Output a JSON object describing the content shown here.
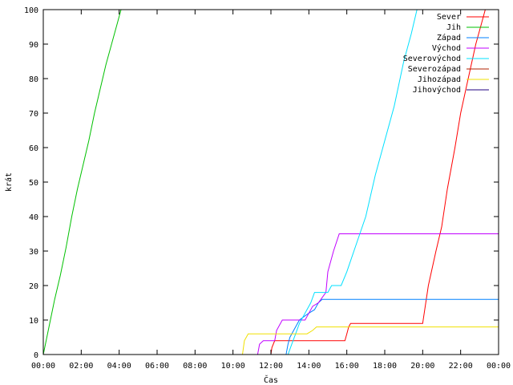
{
  "chart_data": {
    "type": "line",
    "xlabel": "Čas",
    "ylabel": "krát",
    "xlim": [
      0,
      24
    ],
    "ylim": [
      0,
      100
    ],
    "x_unit": "hours",
    "x_tick_labels": [
      "00:00",
      "02:00",
      "04:00",
      "06:00",
      "08:00",
      "10:00",
      "12:00",
      "14:00",
      "16:00",
      "18:00",
      "20:00",
      "22:00",
      "00:00"
    ],
    "y_tick_labels": [
      "0",
      "10",
      "20",
      "30",
      "40",
      "50",
      "60",
      "70",
      "80",
      "90",
      "100"
    ],
    "grid": false,
    "legend_position": "top-right",
    "series": [
      {
        "name": "Sever",
        "color": "#ff0000",
        "points": [
          [
            12.0,
            0
          ],
          [
            12.05,
            2
          ],
          [
            12.2,
            4
          ],
          [
            15.9,
            4
          ],
          [
            16.0,
            6
          ],
          [
            16.1,
            8
          ],
          [
            16.2,
            9
          ],
          [
            20.0,
            9
          ],
          [
            20.3,
            20
          ],
          [
            20.7,
            30
          ],
          [
            21.0,
            37
          ],
          [
            21.3,
            48
          ],
          [
            21.7,
            60
          ],
          [
            22.0,
            70
          ],
          [
            22.4,
            80
          ],
          [
            22.8,
            90
          ],
          [
            23.1,
            96
          ],
          [
            23.3,
            100
          ]
        ]
      },
      {
        "name": "Jih",
        "color": "#00c000",
        "points": [
          [
            0.0,
            0
          ],
          [
            0.3,
            8
          ],
          [
            0.6,
            16
          ],
          [
            0.9,
            23
          ],
          [
            1.2,
            31
          ],
          [
            1.5,
            40
          ],
          [
            1.8,
            48
          ],
          [
            2.1,
            55
          ],
          [
            2.4,
            62
          ],
          [
            2.7,
            70
          ],
          [
            3.0,
            77
          ],
          [
            3.3,
            84
          ],
          [
            3.6,
            90
          ],
          [
            3.9,
            96
          ],
          [
            4.1,
            100
          ]
        ]
      },
      {
        "name": "Západ",
        "color": "#0080ff",
        "points": [
          [
            12.8,
            0
          ],
          [
            12.9,
            3
          ],
          [
            13.0,
            5
          ],
          [
            13.5,
            10
          ],
          [
            14.0,
            12
          ],
          [
            14.3,
            13
          ],
          [
            14.5,
            15
          ],
          [
            14.7,
            16
          ],
          [
            24.0,
            16
          ]
        ]
      },
      {
        "name": "Východ",
        "color": "#c000ff",
        "points": [
          [
            11.3,
            0
          ],
          [
            11.4,
            3
          ],
          [
            11.6,
            4
          ],
          [
            12.2,
            4
          ],
          [
            12.3,
            7
          ],
          [
            12.6,
            10
          ],
          [
            13.8,
            10
          ],
          [
            14.2,
            14
          ],
          [
            14.5,
            15
          ],
          [
            14.9,
            18
          ],
          [
            15.0,
            24
          ],
          [
            15.3,
            30
          ],
          [
            15.6,
            35
          ],
          [
            24.0,
            35
          ]
        ]
      },
      {
        "name": "Severovýchod",
        "color": "#00e0ff",
        "points": [
          [
            12.9,
            0
          ],
          [
            13.1,
            3
          ],
          [
            13.3,
            6
          ],
          [
            13.5,
            9
          ],
          [
            13.8,
            12
          ],
          [
            14.1,
            15
          ],
          [
            14.3,
            18
          ],
          [
            15.0,
            18
          ],
          [
            15.2,
            20
          ],
          [
            15.7,
            20
          ],
          [
            16.0,
            24
          ],
          [
            16.5,
            32
          ],
          [
            17.0,
            40
          ],
          [
            17.5,
            52
          ],
          [
            18.0,
            62
          ],
          [
            18.5,
            72
          ],
          [
            19.0,
            85
          ],
          [
            19.4,
            93
          ],
          [
            19.7,
            100
          ]
        ]
      },
      {
        "name": "Severozápad",
        "color": "#b02000",
        "points": []
      },
      {
        "name": "Jihozápad",
        "color": "#f0e000",
        "points": [
          [
            10.5,
            0
          ],
          [
            10.6,
            4
          ],
          [
            10.8,
            6
          ],
          [
            13.9,
            6
          ],
          [
            14.2,
            7
          ],
          [
            14.4,
            8
          ],
          [
            24.0,
            8
          ]
        ]
      },
      {
        "name": "Jihovýchod",
        "color": "#200080",
        "points": []
      }
    ]
  }
}
